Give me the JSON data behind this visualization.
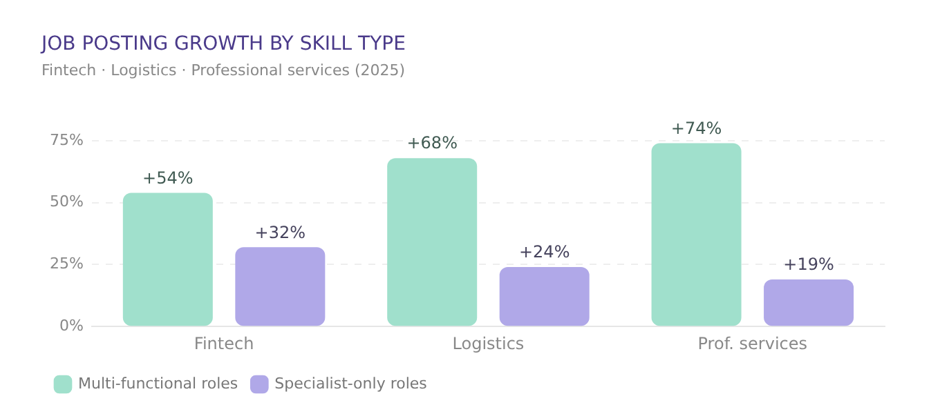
{
  "chart_data": {
    "type": "bar",
    "title": "JOB POSTING GROWTH BY SKILL TYPE",
    "subtitle": "Fintech · Logistics · Professional services (2025)",
    "categories": [
      "Fintech",
      "Logistics",
      "Prof. services"
    ],
    "series": [
      {
        "name": "Multi-functional roles",
        "color": "#a0e0cc",
        "values": [
          54,
          68,
          74
        ],
        "value_labels": [
          "+54%",
          "+68%",
          "+74%"
        ]
      },
      {
        "name": "Specialist-only roles",
        "color": "#b0a8e8",
        "values": [
          32,
          24,
          19
        ],
        "value_labels": [
          "+32%",
          "+24%",
          "+19%"
        ]
      }
    ],
    "ylim": [
      0,
      75
    ],
    "yticks": [
      {
        "value": 0,
        "label": "0%"
      },
      {
        "value": 25,
        "label": "25%"
      },
      {
        "value": 50,
        "label": "50%"
      },
      {
        "value": 75,
        "label": "75%"
      }
    ],
    "grid": "y",
    "legend": "bottom left"
  }
}
